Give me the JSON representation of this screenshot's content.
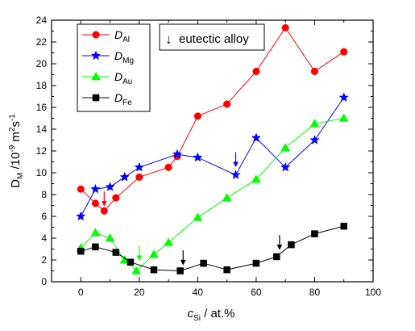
{
  "chart_data": {
    "type": "line",
    "xlabel": "c",
    "xlabel_sub": "Si",
    "xlabel_rest": " / at.%",
    "ylabel": "D",
    "ylabel_sub": "M",
    "ylabel_rest": " /10",
    "ylabel_exp1": "-9",
    "ylabel_mid": " m",
    "ylabel_exp2": "2",
    "ylabel_s": "s",
    "ylabel_exp3": "-1",
    "xlim": [
      -10,
      100
    ],
    "ylim": [
      0,
      24
    ],
    "xticks": [
      0,
      20,
      40,
      60,
      80,
      100
    ],
    "yticks": [
      0,
      2,
      4,
      6,
      8,
      10,
      12,
      14,
      16,
      18,
      20,
      22,
      24
    ],
    "legend_position": "top-left",
    "series": [
      {
        "name": "D",
        "name_sub": "Al",
        "color": "#ff0000",
        "marker": "circle",
        "points": [
          [
            0,
            8.5
          ],
          [
            5,
            7.2
          ],
          [
            8,
            6.5
          ],
          [
            12,
            7.7
          ],
          [
            20,
            9.6
          ],
          [
            30,
            10.5
          ],
          [
            33,
            11.5
          ],
          [
            40,
            15.2
          ],
          [
            50,
            16.3
          ],
          [
            60,
            19.3
          ],
          [
            70,
            23.3
          ],
          [
            80,
            19.3
          ],
          [
            90,
            21.1
          ]
        ]
      },
      {
        "name": "D",
        "name_sub": "Mg",
        "color": "#0000ff",
        "marker": "star",
        "points": [
          [
            0,
            6.0
          ],
          [
            5,
            8.5
          ],
          [
            10,
            8.7
          ],
          [
            15,
            9.6
          ],
          [
            20,
            10.5
          ],
          [
            33,
            11.7
          ],
          [
            40,
            11.4
          ],
          [
            53,
            9.8
          ],
          [
            60,
            13.2
          ],
          [
            70,
            10.5
          ],
          [
            80,
            13.0
          ],
          [
            90,
            16.9
          ]
        ]
      },
      {
        "name": "D",
        "name_sub": "Au",
        "color": "#00ff00",
        "marker": "triangle",
        "points": [
          [
            0,
            3.1
          ],
          [
            5,
            4.5
          ],
          [
            10,
            4.0
          ],
          [
            15,
            2.0
          ],
          [
            19,
            1.0
          ],
          [
            25,
            2.5
          ],
          [
            30,
            3.6
          ],
          [
            40,
            5.9
          ],
          [
            50,
            7.7
          ],
          [
            60,
            9.4
          ],
          [
            70,
            12.3
          ],
          [
            80,
            14.5
          ],
          [
            90,
            15.0
          ]
        ]
      },
      {
        "name": "D",
        "name_sub": "Fe",
        "color": "#000000",
        "marker": "square",
        "points": [
          [
            0,
            2.8
          ],
          [
            5,
            3.2
          ],
          [
            12,
            2.7
          ],
          [
            17,
            1.8
          ],
          [
            25,
            1.1
          ],
          [
            34,
            1.0
          ],
          [
            42,
            1.7
          ],
          [
            50,
            1.1
          ],
          [
            60,
            1.7
          ],
          [
            67,
            2.3
          ],
          [
            72,
            3.4
          ],
          [
            80,
            4.4
          ],
          [
            90,
            5.1
          ]
        ]
      }
    ],
    "annotation": {
      "symbol": "↓",
      "text": "eutectic alloy"
    },
    "eutectic_arrows": [
      {
        "series": "Al",
        "x": 8,
        "y_tip": 6.8
      },
      {
        "series": "Mg",
        "x": 53,
        "y_tip": 10.4
      },
      {
        "series": "Au",
        "x": 20,
        "y_tip": 1.8
      },
      {
        "series": "Fe",
        "x": 35,
        "y_tip": 1.4
      },
      {
        "series": "Fe",
        "x": 68,
        "y_tip": 2.8
      }
    ]
  }
}
